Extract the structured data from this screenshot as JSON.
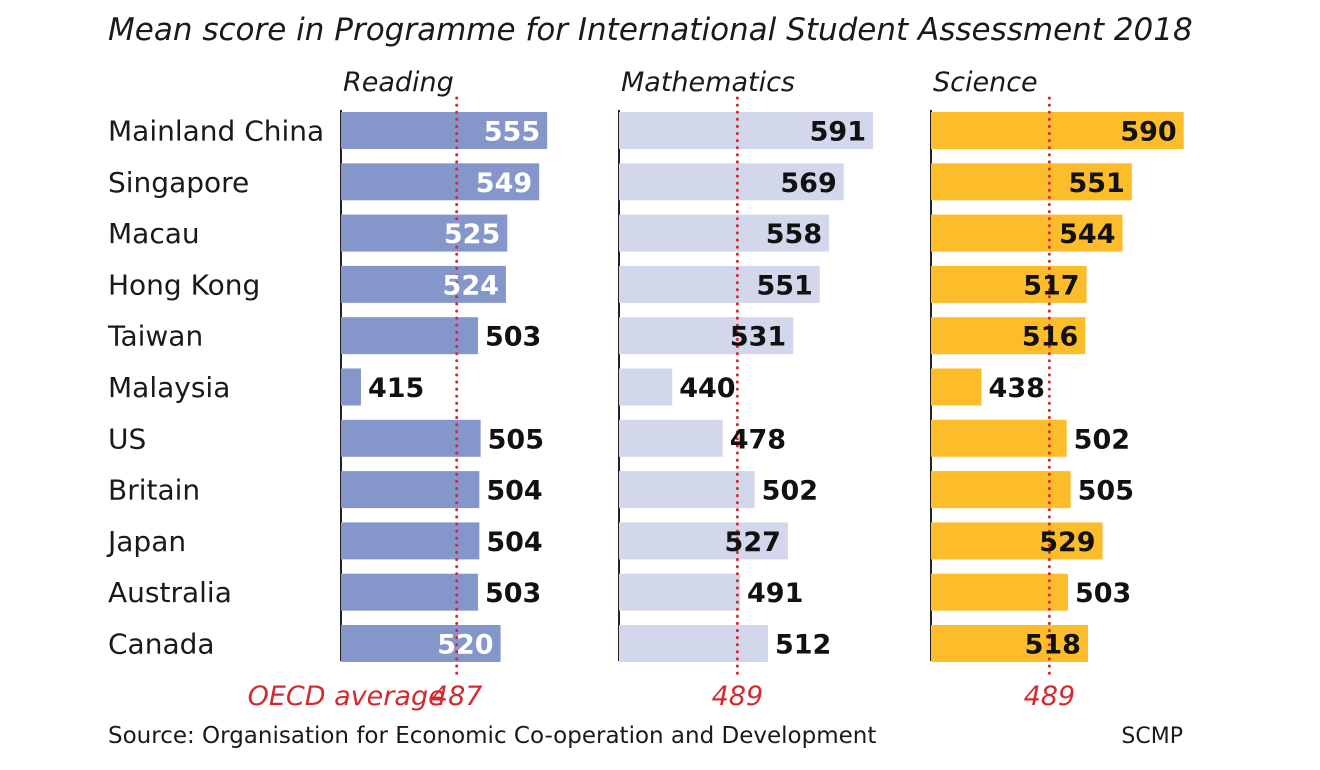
{
  "chart_data": {
    "type": "bar",
    "orientation": "horizontal",
    "title": "Mean score in Programme for International Student Assessment 2018",
    "categories": [
      "Mainland China",
      "Singapore",
      "Macau",
      "Hong Kong",
      "Taiwan",
      "Malaysia",
      "US",
      "Britain",
      "Japan",
      "Australia",
      "Canada"
    ],
    "panels": [
      {
        "name": "Reading",
        "color": "#8596cb",
        "values": [
          555,
          549,
          525,
          524,
          503,
          415,
          505,
          504,
          504,
          503,
          520
        ],
        "average": 487,
        "average_label": "OECD average",
        "average_value_label": "487"
      },
      {
        "name": "Mathematics",
        "color": "#d3d7ec",
        "values": [
          591,
          569,
          558,
          551,
          531,
          440,
          478,
          502,
          527,
          491,
          512
        ],
        "average": 489,
        "average_label": "",
        "average_value_label": "489"
      },
      {
        "name": "Science",
        "color": "#fdbd2b",
        "values": [
          590,
          551,
          544,
          517,
          516,
          438,
          502,
          505,
          529,
          503,
          518
        ],
        "average": 489,
        "average_label": "",
        "average_value_label": "489"
      }
    ],
    "source": "Source: Organisation for Economic Co-operation and Development",
    "credit": "SCMP",
    "average_line_color": "#d42a2f",
    "legend": "none",
    "grid": false
  }
}
